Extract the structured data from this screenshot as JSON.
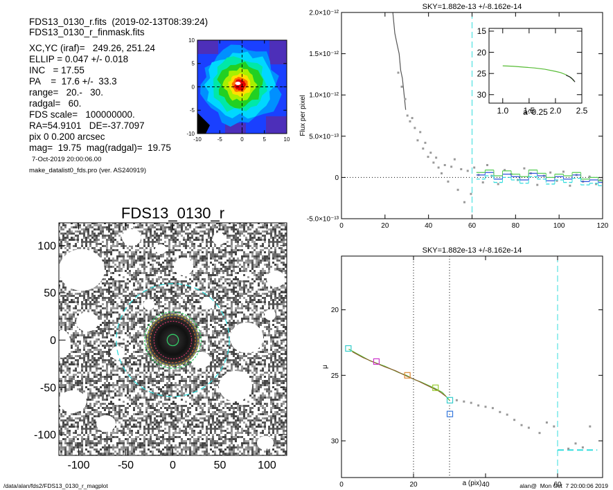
{
  "info": {
    "lines": [
      "FDS13_0130_r.fits  (2019-02-13T08:39:24)",
      "FDS13_0130_r_finmask.fits",
      "XC,YC (iraf)=   249.26, 251.24",
      "ELLIP = 0.047 +/- 0.018",
      "INC   = 17.55",
      "PA    =  17.6 +/-  33.3",
      "range=   20.-   30.",
      "radgal=   60.",
      "FDS scale=   100000000.",
      "RA=54.9101   DE=-37.7097",
      "pix 0 0.200 arcsec",
      "mag=  19.75  mag(radgal)=  19.75"
    ],
    "date": "7-Oct-2019 20:00:06.00",
    "program": "make_datalist0_fds.pro (ver. AS240919)"
  },
  "footer": {
    "path": "/data/alan/fds2/FDS13_0130_r_magplot",
    "user": "alan@  Mon Oct  7 20:00:06 2019"
  },
  "chart_data": [
    {
      "type": "line",
      "title": "SKY=1.882e-13 +/-8.162e-14",
      "ylabel": "Flux per pixel",
      "xlim": [
        0,
        120
      ],
      "ylim": [
        -5e-13,
        2e-12
      ],
      "xticks": [
        0,
        20,
        40,
        60,
        80,
        100,
        120
      ],
      "yticks": [
        {
          "value": -5e-13,
          "label": "-5.0×10⁻¹³"
        },
        0,
        {
          "value": 5e-13,
          "label": "5.0×10⁻¹³"
        },
        {
          "value": 1e-12,
          "label": "1.0×10⁻¹²"
        },
        {
          "value": 1.5e-12,
          "label": "1.5×10⁻¹²"
        },
        {
          "value": 2e-12,
          "label": "2.0×10⁻¹²"
        }
      ],
      "hlines": [
        {
          "y": 0,
          "color": "#000000",
          "dash": "1 3"
        }
      ],
      "vlines": [
        {
          "x": 60,
          "color": "#33dddd",
          "dash": "9 5"
        }
      ],
      "series": [
        {
          "style": "line",
          "color": "#555555",
          "x": [
            23.6,
            24.5,
            25.5,
            26.5,
            27.2,
            28,
            28.6,
            29.5
          ],
          "values": [
            2e-12,
            1.75e-12,
            1.62e-12,
            1.5e-12,
            1.3e-12,
            1.2e-12,
            1.05e-12,
            8.2e-13
          ]
        },
        {
          "style": "points",
          "color": "#999999",
          "x": [
            26.1,
            27.7,
            29.3,
            30.3,
            31.5,
            32.5,
            33.7,
            35,
            36.2,
            37.5,
            38.5,
            39.8,
            41,
            42.3,
            43.5,
            44.6,
            46,
            47.5,
            49,
            50.5,
            52,
            53.5,
            55,
            56.5,
            58,
            59.5,
            61,
            63,
            65,
            67,
            69,
            72,
            75,
            78,
            81,
            84,
            87,
            90,
            93,
            96,
            99,
            102,
            105,
            108,
            111,
            114,
            117,
            119
          ],
          "values": [
            1.27e-12,
            1.1e-12,
            9.5e-13,
            7.5e-13,
            6.8e-13,
            7.2e-13,
            6e-13,
            4.5e-13,
            5.5e-13,
            3.5e-13,
            4.2e-13,
            2.5e-13,
            3e-13,
            1.8e-13,
            2.4e-13,
            1.2e-13,
            5e-14,
            1.5e-13,
            -5e-14,
            1.3e-13,
            2.2e-13,
            -1.5e-13,
            1e-13,
            -3e-13,
            8e-14,
            -2e-13,
            1.2e-13,
            3e-14,
            -6e-14,
            1.5e-13,
            2e-14,
            -8e-14,
            9e-14,
            4e-14,
            -3e-14,
            1.1e-13,
            5e-14,
            -9e-14,
            2e-14,
            6e-14,
            -4e-14,
            7e-14,
            -1e-13,
            3e-14,
            -5e-14,
            1e-14,
            -8e-14,
            -3e-14
          ]
        },
        {
          "style": "steps",
          "color": "#3355dd",
          "bins": [
            62,
            66,
            70,
            74,
            78,
            82,
            86,
            90,
            94,
            98,
            102,
            106,
            110,
            114,
            118,
            120
          ],
          "values": [
            3e-14,
            6e-14,
            -2e-14,
            4e-14,
            1e-14,
            -3e-14,
            5e-14,
            2e-14,
            -4e-14,
            1e-14,
            -2e-14,
            3e-14,
            -5e-14,
            -3e-14,
            -6e-14
          ]
        },
        {
          "style": "steps",
          "color": "#55cc55",
          "bins": [
            62,
            66,
            70,
            74,
            78,
            82,
            86,
            90,
            94,
            98,
            102,
            106,
            110,
            114,
            118,
            120
          ],
          "values": [
            6e-14,
            9e-14,
            2e-14,
            8e-14,
            4e-14,
            1e-14,
            9e-14,
            5e-14,
            0.0,
            4e-14,
            2e-14,
            6e-14,
            -2e-14,
            0.0,
            -4e-14
          ]
        },
        {
          "style": "steps",
          "color": "#33dddd",
          "dash": "5 3",
          "bins": [
            62,
            66,
            70,
            74,
            78,
            82,
            86,
            90,
            94,
            98,
            102,
            106,
            110,
            114,
            118,
            120
          ],
          "values": [
            -2e-14,
            2e-14,
            -6e-14,
            0.0,
            -3e-14,
            -7e-14,
            1e-14,
            -2e-14,
            -8e-14,
            -3e-14,
            -6e-14,
            -1e-14,
            -9e-14,
            -7e-14,
            -1e-13
          ]
        }
      ]
    },
    {
      "type": "line",
      "xlabel": "a^0.25",
      "xlim": [
        0.74,
        2.5
      ],
      "ylim": [
        32,
        14.35
      ],
      "xticks": [
        {
          "value": 1,
          "label": "1.0"
        },
        1.5,
        {
          "value": 2,
          "label": "2.0"
        },
        2.5
      ],
      "yticks": [
        15,
        20,
        25,
        30
      ],
      "series": [
        {
          "style": "line",
          "color": "#55bb33",
          "x": [
            1.0,
            1.2,
            1.4,
            1.6,
            1.8,
            2.0,
            2.1,
            2.2,
            2.3,
            2.35
          ],
          "values": [
            23.2,
            23.3,
            23.5,
            23.7,
            24.0,
            24.5,
            24.8,
            25.3,
            26.0,
            26.8
          ]
        },
        {
          "style": "line",
          "color": "#222222",
          "x": [
            2.2,
            2.27,
            2.33,
            2.37
          ],
          "values": [
            25.4,
            25.8,
            26.4,
            27.0
          ]
        }
      ]
    },
    {
      "type": "line",
      "title": "SKY=1.882e-13 +/-8.162e-14",
      "xlabel": "a (pix)",
      "ylabel": "μ",
      "xlim": [
        0,
        72.5
      ],
      "ylim": [
        32.8,
        15.9
      ],
      "xticks": [
        0,
        20,
        40,
        60
      ],
      "yticks": [
        20,
        25,
        30
      ],
      "vlines": [
        {
          "x": 20,
          "color": "#000000",
          "dash": "1 3"
        },
        {
          "x": 30,
          "color": "#000000",
          "dash": "1 3"
        },
        {
          "x": 60,
          "color": "#33dddd",
          "dash": "9 5"
        }
      ],
      "hlines": [
        {
          "y": 30.7,
          "x": [
            60,
            71
          ],
          "color": "#33dddd",
          "dash": "9 5"
        }
      ],
      "series": [
        {
          "style": "points",
          "color": "#999999",
          "x": [
            32,
            34,
            36,
            38,
            40,
            42,
            44,
            46,
            48,
            50,
            52,
            55,
            57,
            59,
            63,
            65,
            67,
            69
          ],
          "values": [
            26.9,
            27.0,
            27.1,
            27.3,
            27.4,
            27.5,
            27.8,
            28.0,
            28.4,
            28.8,
            29.0,
            29.4,
            28.6,
            28.9,
            30.6,
            30.2,
            30.5,
            28.9
          ]
        },
        {
          "style": "line",
          "color": "#55bb33",
          "x": [
            2,
            4,
            6,
            8,
            10,
            12,
            14,
            16,
            18,
            20,
            22,
            24,
            26,
            28,
            30
          ],
          "values": [
            23.0,
            23.3,
            23.6,
            23.9,
            24.1,
            24.3,
            24.55,
            24.8,
            25.0,
            25.3,
            25.5,
            25.75,
            26.0,
            26.3,
            26.9
          ]
        },
        {
          "style": "line",
          "color": "#8b5a2b",
          "x": [
            3,
            6,
            9,
            12,
            15,
            18,
            21,
            24,
            27,
            29
          ],
          "values": [
            23.2,
            23.65,
            24.0,
            24.35,
            24.65,
            25.05,
            25.4,
            25.8,
            26.2,
            26.6
          ]
        }
      ],
      "markers": [
        {
          "x": 1.9,
          "y": 22.95,
          "color": "#33cccc"
        },
        {
          "x": 9.7,
          "y": 23.95,
          "color": "#cc33cc"
        },
        {
          "x": 18.3,
          "y": 25.0,
          "color": "#dd8833"
        },
        {
          "x": 26.1,
          "y": 25.95,
          "color": "#99cc33"
        },
        {
          "x": 30.1,
          "y": 26.9,
          "color": "#33cccc"
        },
        {
          "x": 30.1,
          "y": 27.95,
          "color": "#3377dd"
        }
      ]
    },
    {
      "type": "image",
      "title": "FDS13_0130_r",
      "xlim": [
        -121,
        121
      ],
      "ylim": [
        -122,
        124
      ],
      "xticks": [
        -100,
        -50,
        0,
        50,
        100
      ],
      "yticks": [
        -100,
        -50,
        0,
        50,
        100
      ],
      "apertures": [
        {
          "r": 60,
          "color": "#33dddd",
          "dash": "8 5"
        },
        {
          "r": 30,
          "color": "#33cc66",
          "dash": "3 2"
        },
        {
          "r": 27,
          "color": "#cccc33",
          "dash": "3 2"
        },
        {
          "r": 24,
          "color": "#cc6633",
          "dash": "3 2"
        },
        {
          "r": 20,
          "color": "#cc3366",
          "dash": "2 2"
        },
        {
          "r": 6,
          "color": "#33cc66"
        }
      ]
    },
    {
      "type": "heatmap",
      "xlim": [
        -10,
        10
      ],
      "ylim": [
        -10,
        10
      ],
      "xticks": [
        -10,
        -5,
        0,
        5,
        10
      ],
      "yticks": [
        -10,
        -5,
        0,
        5,
        10
      ]
    }
  ]
}
